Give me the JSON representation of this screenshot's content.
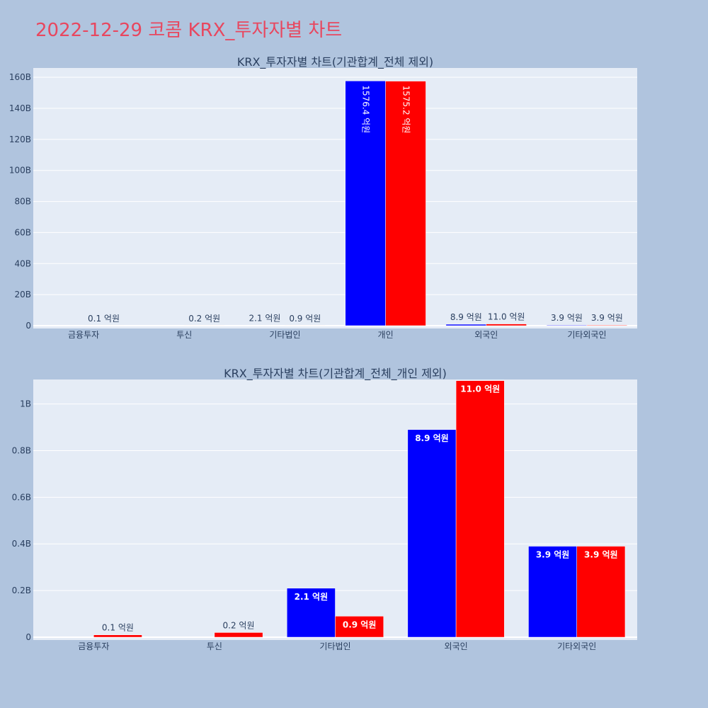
{
  "page": {
    "title": "2022-12-29 코콤 KRX_투자자별 차트"
  },
  "colors": {
    "buy": "#0000ff",
    "sell": "#ff0000",
    "plot_bg": "#e5ecf6",
    "paper_bg": "#b0c4de",
    "text": "#2a3f5f"
  },
  "chart_data": [
    {
      "type": "bar",
      "title": "KRX_투자자별 차트(기관합계_전체 제외)",
      "categories": [
        "금융투자",
        "투신",
        "기타법인",
        "개인",
        "외국인",
        "기타외국인"
      ],
      "series": [
        {
          "values": [
            0,
            0,
            0.21,
            157.64,
            0.89,
            0.39
          ],
          "labels": [
            "",
            "",
            "2.1 억원",
            "1576.4 억원",
            "8.9 억원",
            "3.9 억원"
          ]
        },
        {
          "values": [
            0.01,
            0.02,
            0.09,
            157.52,
            1.1,
            0.39
          ],
          "labels": [
            "0.1 억원",
            "0.2 억원",
            "0.9 억원",
            "1575.2 억원",
            "11.0 억원",
            "3.9 억원"
          ]
        }
      ],
      "ylim": [
        0,
        166
      ],
      "yticks": [
        0,
        20,
        40,
        60,
        80,
        100,
        120,
        140,
        160
      ],
      "ytick_labels": [
        "0",
        "20B",
        "40B",
        "60B",
        "80B",
        "100B",
        "120B",
        "140B",
        "160B"
      ],
      "ylabel": "",
      "xlabel": "",
      "grid": true
    },
    {
      "type": "bar",
      "title": "KRX_투자자별 차트(기관합계_전체_개인 제외)",
      "categories": [
        "금융투자",
        "투신",
        "기타법인",
        "외국인",
        "기타외국인"
      ],
      "series": [
        {
          "values": [
            0,
            0,
            0.21,
            0.89,
            0.39
          ],
          "labels": [
            "",
            "",
            "2.1 억원",
            "8.9 억원",
            "3.9 억원"
          ]
        },
        {
          "values": [
            0.01,
            0.02,
            0.09,
            1.1,
            0.39
          ],
          "labels": [
            "0.1 억원",
            "0.2 억원",
            "0.9 억원",
            "11.0 억원",
            "3.9 억원"
          ]
        }
      ],
      "ylim": [
        0,
        1.105
      ],
      "yticks": [
        0,
        0.2,
        0.4,
        0.6,
        0.8,
        1.0
      ],
      "ytick_labels": [
        "0",
        "0.2B",
        "0.4B",
        "0.6B",
        "0.8B",
        "1B"
      ],
      "ylabel": "",
      "xlabel": "",
      "grid": true
    }
  ]
}
